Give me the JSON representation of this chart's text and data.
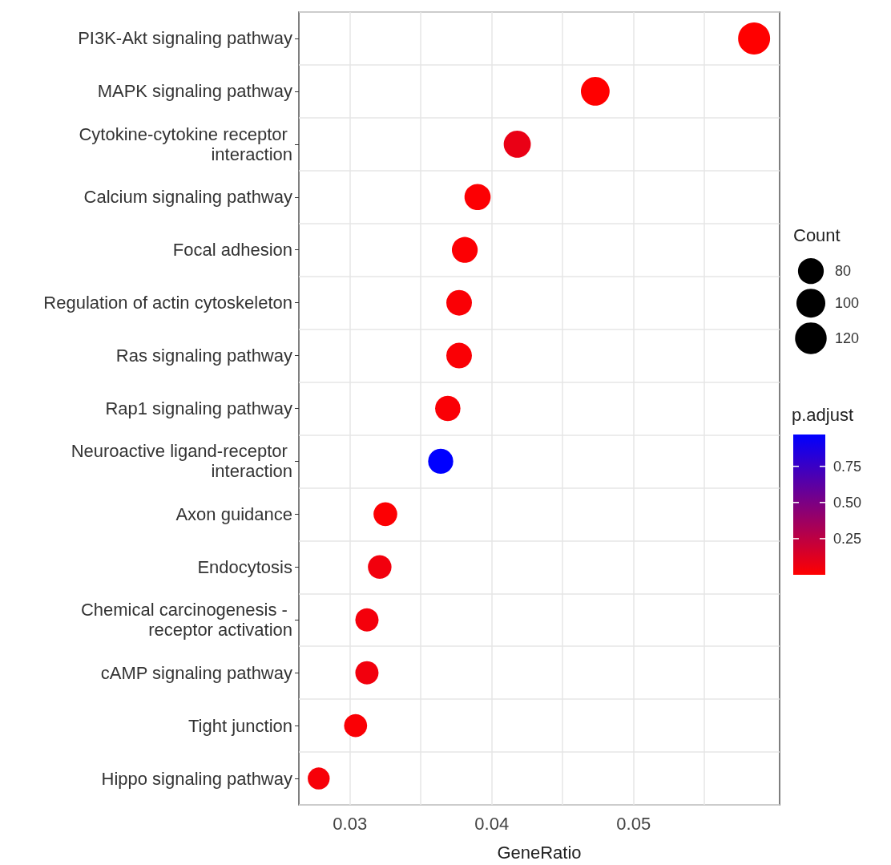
{
  "chart_data": {
    "type": "bubble",
    "orientation": "horizontal",
    "xlabel": "GeneRatio",
    "legend_title": "Count",
    "clabel": "p.adjust",
    "categories": [
      "PI3K-Akt signaling pathway",
      "MAPK signaling pathway",
      "Cytokine-cytokine receptor interaction",
      "Calcium signaling pathway",
      "Focal adhesion",
      "Regulation of actin cytoskeleton",
      "Ras signaling pathway",
      "Rap1 signaling pathway",
      "Neuroactive ligand-receptor interaction",
      "Axon guidance",
      "Endocytosis",
      "Chemical carcinogenesis - receptor activation",
      "cAMP signaling pathway",
      "Tight junction",
      "Hippo signaling pathway"
    ],
    "values": [
      0.0585,
      0.0473,
      0.0418,
      0.039,
      0.0381,
      0.0377,
      0.0377,
      0.0369,
      0.0364,
      0.0325,
      0.0321,
      0.0312,
      0.0312,
      0.0304,
      0.0278
    ],
    "sizes": [
      123,
      99,
      88,
      82,
      80,
      79,
      79,
      77,
      76,
      68,
      67,
      65,
      65,
      64,
      58
    ],
    "cvalues": [
      0.0,
      0.0,
      0.08,
      0.01,
      0.01,
      0.02,
      0.02,
      0.02,
      0.97,
      0.01,
      0.05,
      0.04,
      0.05,
      0.02,
      0.03
    ],
    "size_legend": [
      80,
      100,
      120
    ],
    "clim": [
      0,
      0.97
    ],
    "cticks": [
      {
        "value": 0.25,
        "label": "0.25"
      },
      {
        "value": 0.5,
        "label": "0.50"
      },
      {
        "value": 0.75,
        "label": "0.75"
      }
    ],
    "xlim": [
      0.0264,
      0.0603
    ],
    "xticks": [
      0.03,
      {
        "value": 0.035,
        "label": null
      },
      0.04,
      {
        "value": 0.045,
        "label": null
      },
      0.05,
      {
        "value": 0.055,
        "label": null
      }
    ],
    "grid": true
  }
}
